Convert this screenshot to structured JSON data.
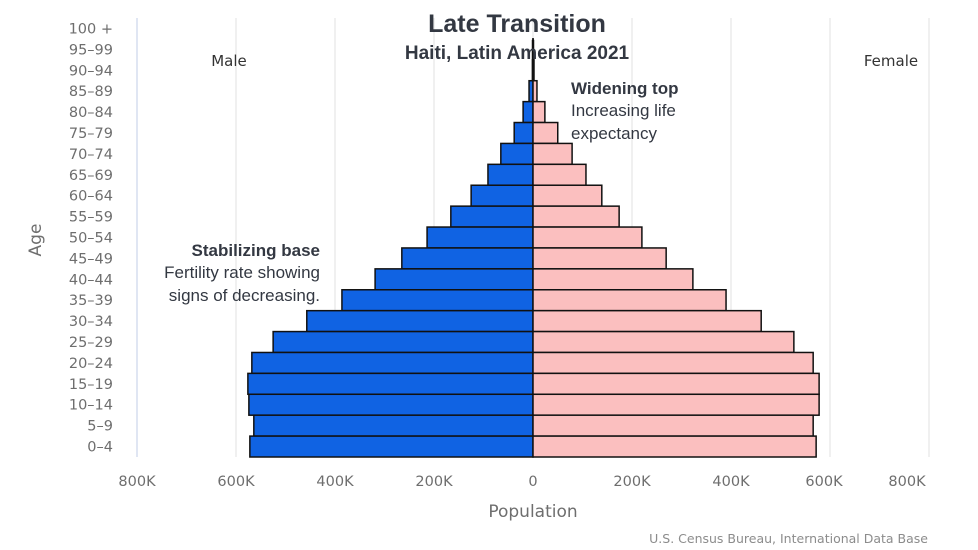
{
  "chart_data": {
    "type": "bar",
    "orientation": "horizontal",
    "title": "Late Transition",
    "subtitle": "Haiti, Latin America 2021",
    "xlabel": "Population",
    "ylabel": "Age",
    "xlim": [
      -800000,
      800000
    ],
    "x_ticks": [
      "800K",
      "600K",
      "400K",
      "200K",
      "0",
      "200K",
      "400K",
      "600K",
      "800K"
    ],
    "grid": true,
    "categories": [
      "100 +",
      "95-99",
      "90-94",
      "85-89",
      "80-84",
      "75-79",
      "70-74",
      "65-69",
      "60-64",
      "55-59",
      "50-54",
      "45-49",
      "40-44",
      "35-39",
      "30-34",
      "25-29",
      "20-24",
      "15-19",
      "10-14",
      "5-9",
      "0-4"
    ],
    "category_labels": [
      "100 +",
      "95–99",
      "90–94",
      "85–89",
      "80–84",
      "75–79",
      "70–74",
      "65–69",
      "60–64",
      "55–59",
      "50–54",
      "45–49",
      "40–44",
      "35–39",
      "30–34",
      "25–29",
      "20–24",
      "15–19",
      "10–14",
      "5–9",
      "0–4"
    ],
    "series": [
      {
        "name": "Male",
        "color": "#1063e3",
        "values": [
          0,
          100,
          1000,
          8000,
          20000,
          38000,
          65000,
          91000,
          125000,
          166000,
          214000,
          265000,
          319000,
          386000,
          457000,
          525000,
          568000,
          576000,
          574000,
          564000,
          572000
        ]
      },
      {
        "name": "Female",
        "color": "#fbbfbf",
        "values": [
          0,
          200,
          2000,
          8000,
          24000,
          50000,
          79000,
          107000,
          139000,
          174000,
          220000,
          269000,
          323000,
          390000,
          461000,
          527000,
          566000,
          578000,
          578000,
          566000,
          572000
        ]
      }
    ],
    "series_labels": {
      "male": "Male",
      "female": "Female"
    },
    "annotations": [
      {
        "head": "Widening top",
        "lines": [
          "Increasing life",
          "expectancy"
        ]
      },
      {
        "head": "Stabilizing base",
        "lines": [
          "Fertility rate showing",
          "signs of decreasing."
        ]
      }
    ],
    "source": "U.S. Census Bureau, International Data Base"
  }
}
